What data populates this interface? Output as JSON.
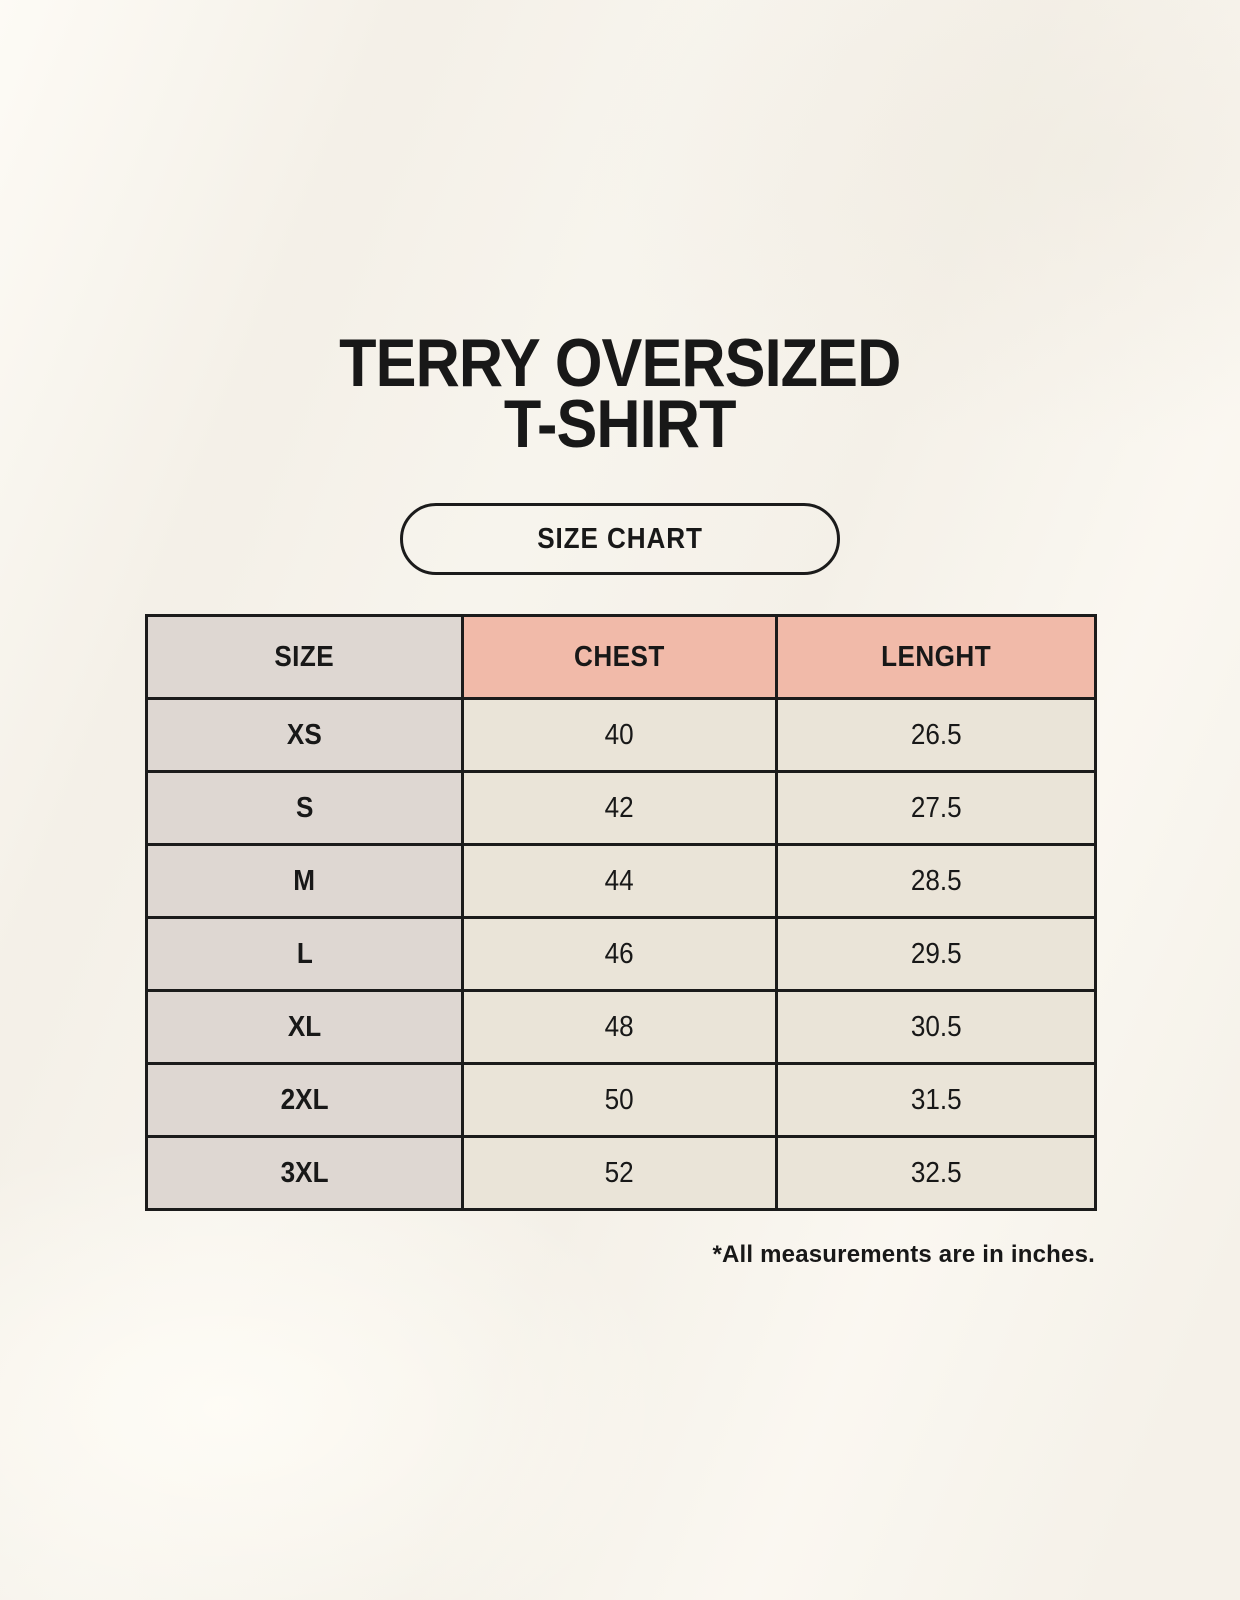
{
  "header": {
    "title_line1": "TERRY OVERSIZED",
    "title_line2": "T-SHIRT",
    "size_chart_label": "SIZE CHART"
  },
  "chart_data": {
    "type": "table",
    "title": "TERRY OVERSIZED T-SHIRT",
    "subtitle": "SIZE CHART",
    "columns": [
      "SIZE",
      "CHEST",
      "LENGHT"
    ],
    "rows": [
      [
        "XS",
        "40",
        "26.5"
      ],
      [
        "S",
        "42",
        "27.5"
      ],
      [
        "M",
        "44",
        "28.5"
      ],
      [
        "L",
        "46",
        "29.5"
      ],
      [
        "XL",
        "48",
        "30.5"
      ],
      [
        "2XL",
        "50",
        "31.5"
      ],
      [
        "3XL",
        "52",
        "32.5"
      ]
    ],
    "note": "*All measurements are in inches.",
    "units": "inches"
  },
  "footnote": "*All measurements are in inches.",
  "colors": {
    "page_bg": "#f7f4ed",
    "header_size_bg": "#ded7d2",
    "header_measure_bg": "#f1baa9",
    "size_col_bg": "#ded7d2",
    "value_cell_bg": "#eae4d8",
    "border": "#1b1b1b",
    "text": "#181818"
  }
}
